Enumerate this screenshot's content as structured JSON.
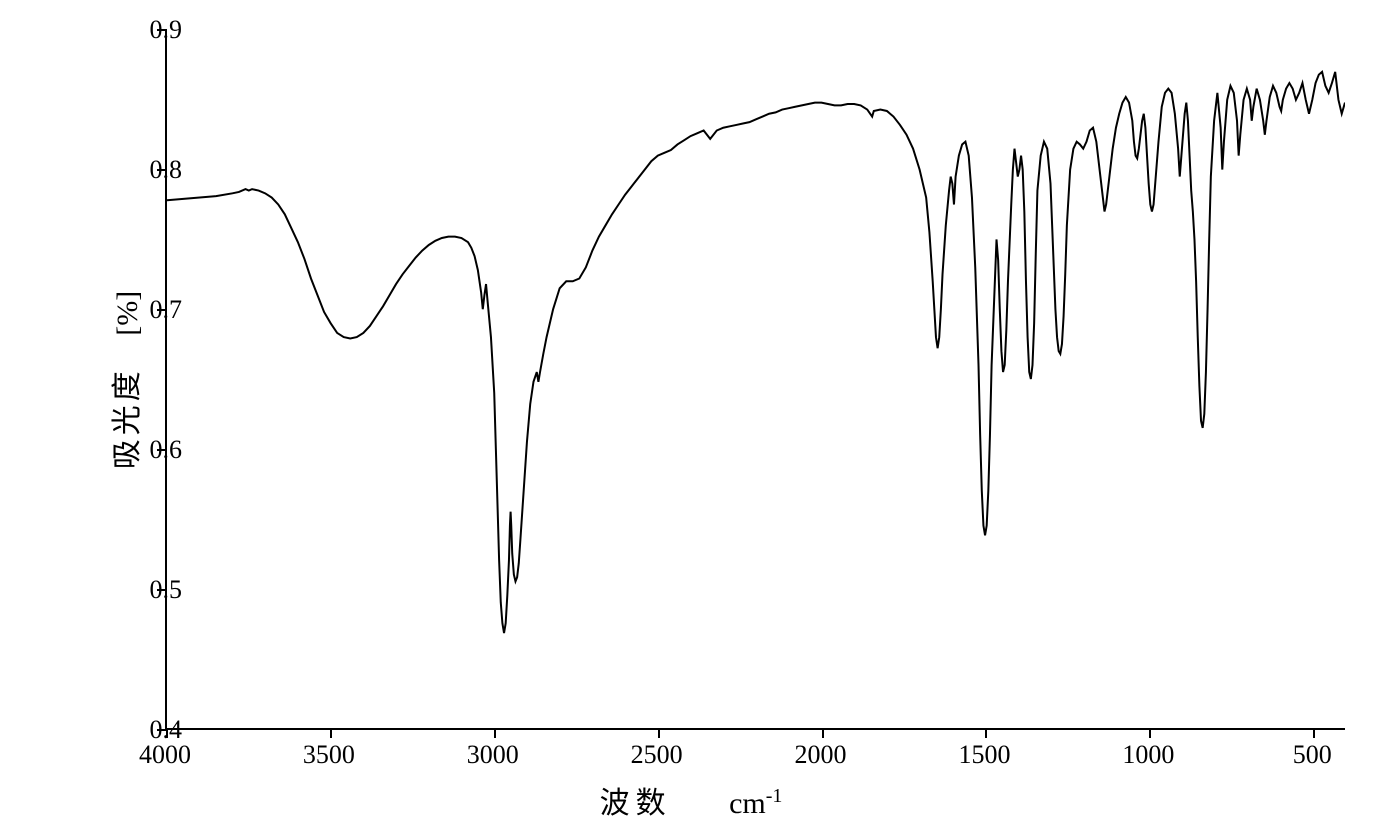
{
  "chart": {
    "type": "line",
    "y_axis": {
      "label": "吸光度",
      "unit": "[%]",
      "min": 0.4,
      "max": 0.9,
      "ticks": [
        0.4,
        0.5,
        0.6,
        0.7,
        0.8,
        0.9
      ],
      "tick_labels": [
        "0.4",
        "0.5",
        "0.6",
        "0.7",
        "0.8",
        "0.9"
      ]
    },
    "x_axis": {
      "label": "波数",
      "unit": "cm⁻¹",
      "min": 4000,
      "max": 400,
      "reversed": true,
      "ticks": [
        4000,
        3500,
        3000,
        2500,
        2000,
        1500,
        1000,
        500
      ],
      "tick_labels": [
        "4000",
        "3500",
        "3000",
        "2500",
        "2000",
        "1500",
        "1000",
        "500"
      ]
    },
    "line_color": "#000000",
    "line_width": 2,
    "background_color": "#ffffff",
    "axis_color": "#000000",
    "tick_fontsize": 26,
    "label_fontsize": 30,
    "data_points": [
      [
        4000,
        0.778
      ],
      [
        3950,
        0.779
      ],
      [
        3900,
        0.78
      ],
      [
        3850,
        0.781
      ],
      [
        3800,
        0.783
      ],
      [
        3780,
        0.784
      ],
      [
        3760,
        0.786
      ],
      [
        3750,
        0.785
      ],
      [
        3740,
        0.786
      ],
      [
        3720,
        0.785
      ],
      [
        3700,
        0.783
      ],
      [
        3680,
        0.78
      ],
      [
        3660,
        0.775
      ],
      [
        3640,
        0.768
      ],
      [
        3620,
        0.758
      ],
      [
        3600,
        0.748
      ],
      [
        3580,
        0.736
      ],
      [
        3560,
        0.722
      ],
      [
        3540,
        0.71
      ],
      [
        3520,
        0.698
      ],
      [
        3500,
        0.69
      ],
      [
        3480,
        0.683
      ],
      [
        3460,
        0.68
      ],
      [
        3440,
        0.679
      ],
      [
        3420,
        0.68
      ],
      [
        3400,
        0.683
      ],
      [
        3380,
        0.688
      ],
      [
        3360,
        0.695
      ],
      [
        3340,
        0.702
      ],
      [
        3320,
        0.71
      ],
      [
        3300,
        0.718
      ],
      [
        3280,
        0.725
      ],
      [
        3260,
        0.731
      ],
      [
        3240,
        0.737
      ],
      [
        3220,
        0.742
      ],
      [
        3200,
        0.746
      ],
      [
        3180,
        0.749
      ],
      [
        3160,
        0.751
      ],
      [
        3140,
        0.752
      ],
      [
        3120,
        0.752
      ],
      [
        3100,
        0.751
      ],
      [
        3080,
        0.748
      ],
      [
        3070,
        0.744
      ],
      [
        3060,
        0.738
      ],
      [
        3050,
        0.728
      ],
      [
        3040,
        0.712
      ],
      [
        3035,
        0.7
      ],
      [
        3030,
        0.71
      ],
      [
        3025,
        0.718
      ],
      [
        3020,
        0.705
      ],
      [
        3010,
        0.68
      ],
      [
        3000,
        0.64
      ],
      [
        2995,
        0.6
      ],
      [
        2990,
        0.56
      ],
      [
        2985,
        0.52
      ],
      [
        2980,
        0.49
      ],
      [
        2975,
        0.475
      ],
      [
        2970,
        0.468
      ],
      [
        2965,
        0.475
      ],
      [
        2960,
        0.495
      ],
      [
        2955,
        0.52
      ],
      [
        2952,
        0.545
      ],
      [
        2950,
        0.555
      ],
      [
        2948,
        0.545
      ],
      [
        2945,
        0.525
      ],
      [
        2940,
        0.51
      ],
      [
        2935,
        0.505
      ],
      [
        2930,
        0.508
      ],
      [
        2925,
        0.518
      ],
      [
        2920,
        0.535
      ],
      [
        2910,
        0.57
      ],
      [
        2900,
        0.605
      ],
      [
        2890,
        0.632
      ],
      [
        2880,
        0.648
      ],
      [
        2870,
        0.655
      ],
      [
        2865,
        0.648
      ],
      [
        2860,
        0.655
      ],
      [
        2850,
        0.668
      ],
      [
        2840,
        0.68
      ],
      [
        2830,
        0.69
      ],
      [
        2820,
        0.7
      ],
      [
        2800,
        0.715
      ],
      [
        2780,
        0.72
      ],
      [
        2760,
        0.72
      ],
      [
        2740,
        0.722
      ],
      [
        2720,
        0.73
      ],
      [
        2700,
        0.742
      ],
      [
        2680,
        0.752
      ],
      [
        2660,
        0.76
      ],
      [
        2640,
        0.768
      ],
      [
        2620,
        0.775
      ],
      [
        2600,
        0.782
      ],
      [
        2580,
        0.788
      ],
      [
        2560,
        0.794
      ],
      [
        2540,
        0.8
      ],
      [
        2520,
        0.806
      ],
      [
        2500,
        0.81
      ],
      [
        2480,
        0.812
      ],
      [
        2460,
        0.814
      ],
      [
        2440,
        0.818
      ],
      [
        2420,
        0.821
      ],
      [
        2400,
        0.824
      ],
      [
        2380,
        0.826
      ],
      [
        2360,
        0.828
      ],
      [
        2340,
        0.822
      ],
      [
        2320,
        0.828
      ],
      [
        2300,
        0.83
      ],
      [
        2280,
        0.831
      ],
      [
        2260,
        0.832
      ],
      [
        2240,
        0.833
      ],
      [
        2220,
        0.834
      ],
      [
        2200,
        0.836
      ],
      [
        2180,
        0.838
      ],
      [
        2160,
        0.84
      ],
      [
        2140,
        0.841
      ],
      [
        2120,
        0.843
      ],
      [
        2100,
        0.844
      ],
      [
        2080,
        0.845
      ],
      [
        2060,
        0.846
      ],
      [
        2040,
        0.847
      ],
      [
        2020,
        0.848
      ],
      [
        2000,
        0.848
      ],
      [
        1980,
        0.847
      ],
      [
        1960,
        0.846
      ],
      [
        1940,
        0.846
      ],
      [
        1920,
        0.847
      ],
      [
        1900,
        0.847
      ],
      [
        1880,
        0.846
      ],
      [
        1860,
        0.843
      ],
      [
        1845,
        0.838
      ],
      [
        1840,
        0.842
      ],
      [
        1820,
        0.843
      ],
      [
        1800,
        0.842
      ],
      [
        1780,
        0.838
      ],
      [
        1760,
        0.832
      ],
      [
        1740,
        0.825
      ],
      [
        1720,
        0.815
      ],
      [
        1700,
        0.8
      ],
      [
        1680,
        0.78
      ],
      [
        1670,
        0.755
      ],
      [
        1660,
        0.72
      ],
      [
        1655,
        0.7
      ],
      [
        1650,
        0.68
      ],
      [
        1645,
        0.672
      ],
      [
        1640,
        0.68
      ],
      [
        1635,
        0.7
      ],
      [
        1630,
        0.725
      ],
      [
        1620,
        0.76
      ],
      [
        1610,
        0.785
      ],
      [
        1605,
        0.795
      ],
      [
        1600,
        0.79
      ],
      [
        1595,
        0.775
      ],
      [
        1590,
        0.795
      ],
      [
        1580,
        0.81
      ],
      [
        1570,
        0.818
      ],
      [
        1560,
        0.82
      ],
      [
        1550,
        0.81
      ],
      [
        1540,
        0.78
      ],
      [
        1530,
        0.73
      ],
      [
        1520,
        0.66
      ],
      [
        1515,
        0.61
      ],
      [
        1510,
        0.57
      ],
      [
        1505,
        0.545
      ],
      [
        1500,
        0.538
      ],
      [
        1495,
        0.545
      ],
      [
        1490,
        0.57
      ],
      [
        1485,
        0.61
      ],
      [
        1480,
        0.66
      ],
      [
        1470,
        0.72
      ],
      [
        1465,
        0.75
      ],
      [
        1460,
        0.735
      ],
      [
        1455,
        0.7
      ],
      [
        1450,
        0.67
      ],
      [
        1445,
        0.655
      ],
      [
        1440,
        0.66
      ],
      [
        1435,
        0.685
      ],
      [
        1430,
        0.72
      ],
      [
        1420,
        0.775
      ],
      [
        1415,
        0.8
      ],
      [
        1410,
        0.815
      ],
      [
        1405,
        0.805
      ],
      [
        1400,
        0.795
      ],
      [
        1395,
        0.8
      ],
      [
        1390,
        0.81
      ],
      [
        1385,
        0.8
      ],
      [
        1380,
        0.77
      ],
      [
        1375,
        0.72
      ],
      [
        1370,
        0.68
      ],
      [
        1365,
        0.655
      ],
      [
        1360,
        0.65
      ],
      [
        1355,
        0.66
      ],
      [
        1350,
        0.69
      ],
      [
        1345,
        0.74
      ],
      [
        1340,
        0.785
      ],
      [
        1330,
        0.81
      ],
      [
        1320,
        0.82
      ],
      [
        1310,
        0.815
      ],
      [
        1300,
        0.79
      ],
      [
        1295,
        0.76
      ],
      [
        1290,
        0.73
      ],
      [
        1285,
        0.7
      ],
      [
        1280,
        0.68
      ],
      [
        1275,
        0.67
      ],
      [
        1270,
        0.668
      ],
      [
        1265,
        0.675
      ],
      [
        1260,
        0.695
      ],
      [
        1255,
        0.725
      ],
      [
        1250,
        0.76
      ],
      [
        1240,
        0.8
      ],
      [
        1230,
        0.815
      ],
      [
        1220,
        0.82
      ],
      [
        1210,
        0.818
      ],
      [
        1200,
        0.815
      ],
      [
        1190,
        0.82
      ],
      [
        1180,
        0.828
      ],
      [
        1170,
        0.83
      ],
      [
        1160,
        0.82
      ],
      [
        1150,
        0.8
      ],
      [
        1140,
        0.78
      ],
      [
        1135,
        0.77
      ],
      [
        1130,
        0.775
      ],
      [
        1120,
        0.795
      ],
      [
        1110,
        0.815
      ],
      [
        1100,
        0.83
      ],
      [
        1090,
        0.84
      ],
      [
        1080,
        0.848
      ],
      [
        1070,
        0.852
      ],
      [
        1060,
        0.848
      ],
      [
        1050,
        0.835
      ],
      [
        1045,
        0.82
      ],
      [
        1040,
        0.81
      ],
      [
        1035,
        0.808
      ],
      [
        1030,
        0.815
      ],
      [
        1020,
        0.835
      ],
      [
        1015,
        0.84
      ],
      [
        1010,
        0.83
      ],
      [
        1005,
        0.81
      ],
      [
        1000,
        0.79
      ],
      [
        995,
        0.775
      ],
      [
        990,
        0.77
      ],
      [
        985,
        0.775
      ],
      [
        980,
        0.79
      ],
      [
        970,
        0.82
      ],
      [
        960,
        0.845
      ],
      [
        950,
        0.855
      ],
      [
        940,
        0.858
      ],
      [
        930,
        0.855
      ],
      [
        920,
        0.84
      ],
      [
        910,
        0.815
      ],
      [
        905,
        0.795
      ],
      [
        900,
        0.81
      ],
      [
        890,
        0.84
      ],
      [
        885,
        0.848
      ],
      [
        880,
        0.835
      ],
      [
        875,
        0.81
      ],
      [
        870,
        0.785
      ],
      [
        865,
        0.77
      ],
      [
        860,
        0.75
      ],
      [
        855,
        0.72
      ],
      [
        850,
        0.68
      ],
      [
        845,
        0.645
      ],
      [
        840,
        0.62
      ],
      [
        835,
        0.615
      ],
      [
        830,
        0.625
      ],
      [
        825,
        0.655
      ],
      [
        820,
        0.7
      ],
      [
        815,
        0.75
      ],
      [
        810,
        0.795
      ],
      [
        800,
        0.835
      ],
      [
        790,
        0.855
      ],
      [
        780,
        0.83
      ],
      [
        775,
        0.8
      ],
      [
        770,
        0.82
      ],
      [
        760,
        0.85
      ],
      [
        750,
        0.86
      ],
      [
        740,
        0.855
      ],
      [
        730,
        0.835
      ],
      [
        725,
        0.81
      ],
      [
        720,
        0.825
      ],
      [
        710,
        0.85
      ],
      [
        700,
        0.858
      ],
      [
        690,
        0.85
      ],
      [
        685,
        0.835
      ],
      [
        680,
        0.845
      ],
      [
        670,
        0.858
      ],
      [
        660,
        0.85
      ],
      [
        650,
        0.835
      ],
      [
        645,
        0.825
      ],
      [
        640,
        0.835
      ],
      [
        630,
        0.852
      ],
      [
        620,
        0.86
      ],
      [
        610,
        0.855
      ],
      [
        600,
        0.845
      ],
      [
        595,
        0.842
      ],
      [
        590,
        0.85
      ],
      [
        580,
        0.858
      ],
      [
        570,
        0.862
      ],
      [
        560,
        0.858
      ],
      [
        550,
        0.85
      ],
      [
        540,
        0.855
      ],
      [
        530,
        0.862
      ],
      [
        520,
        0.85
      ],
      [
        510,
        0.84
      ],
      [
        500,
        0.85
      ],
      [
        490,
        0.862
      ],
      [
        480,
        0.868
      ],
      [
        470,
        0.87
      ],
      [
        460,
        0.86
      ],
      [
        450,
        0.855
      ],
      [
        440,
        0.862
      ],
      [
        430,
        0.87
      ],
      [
        420,
        0.85
      ],
      [
        410,
        0.84
      ],
      [
        400,
        0.848
      ]
    ]
  }
}
